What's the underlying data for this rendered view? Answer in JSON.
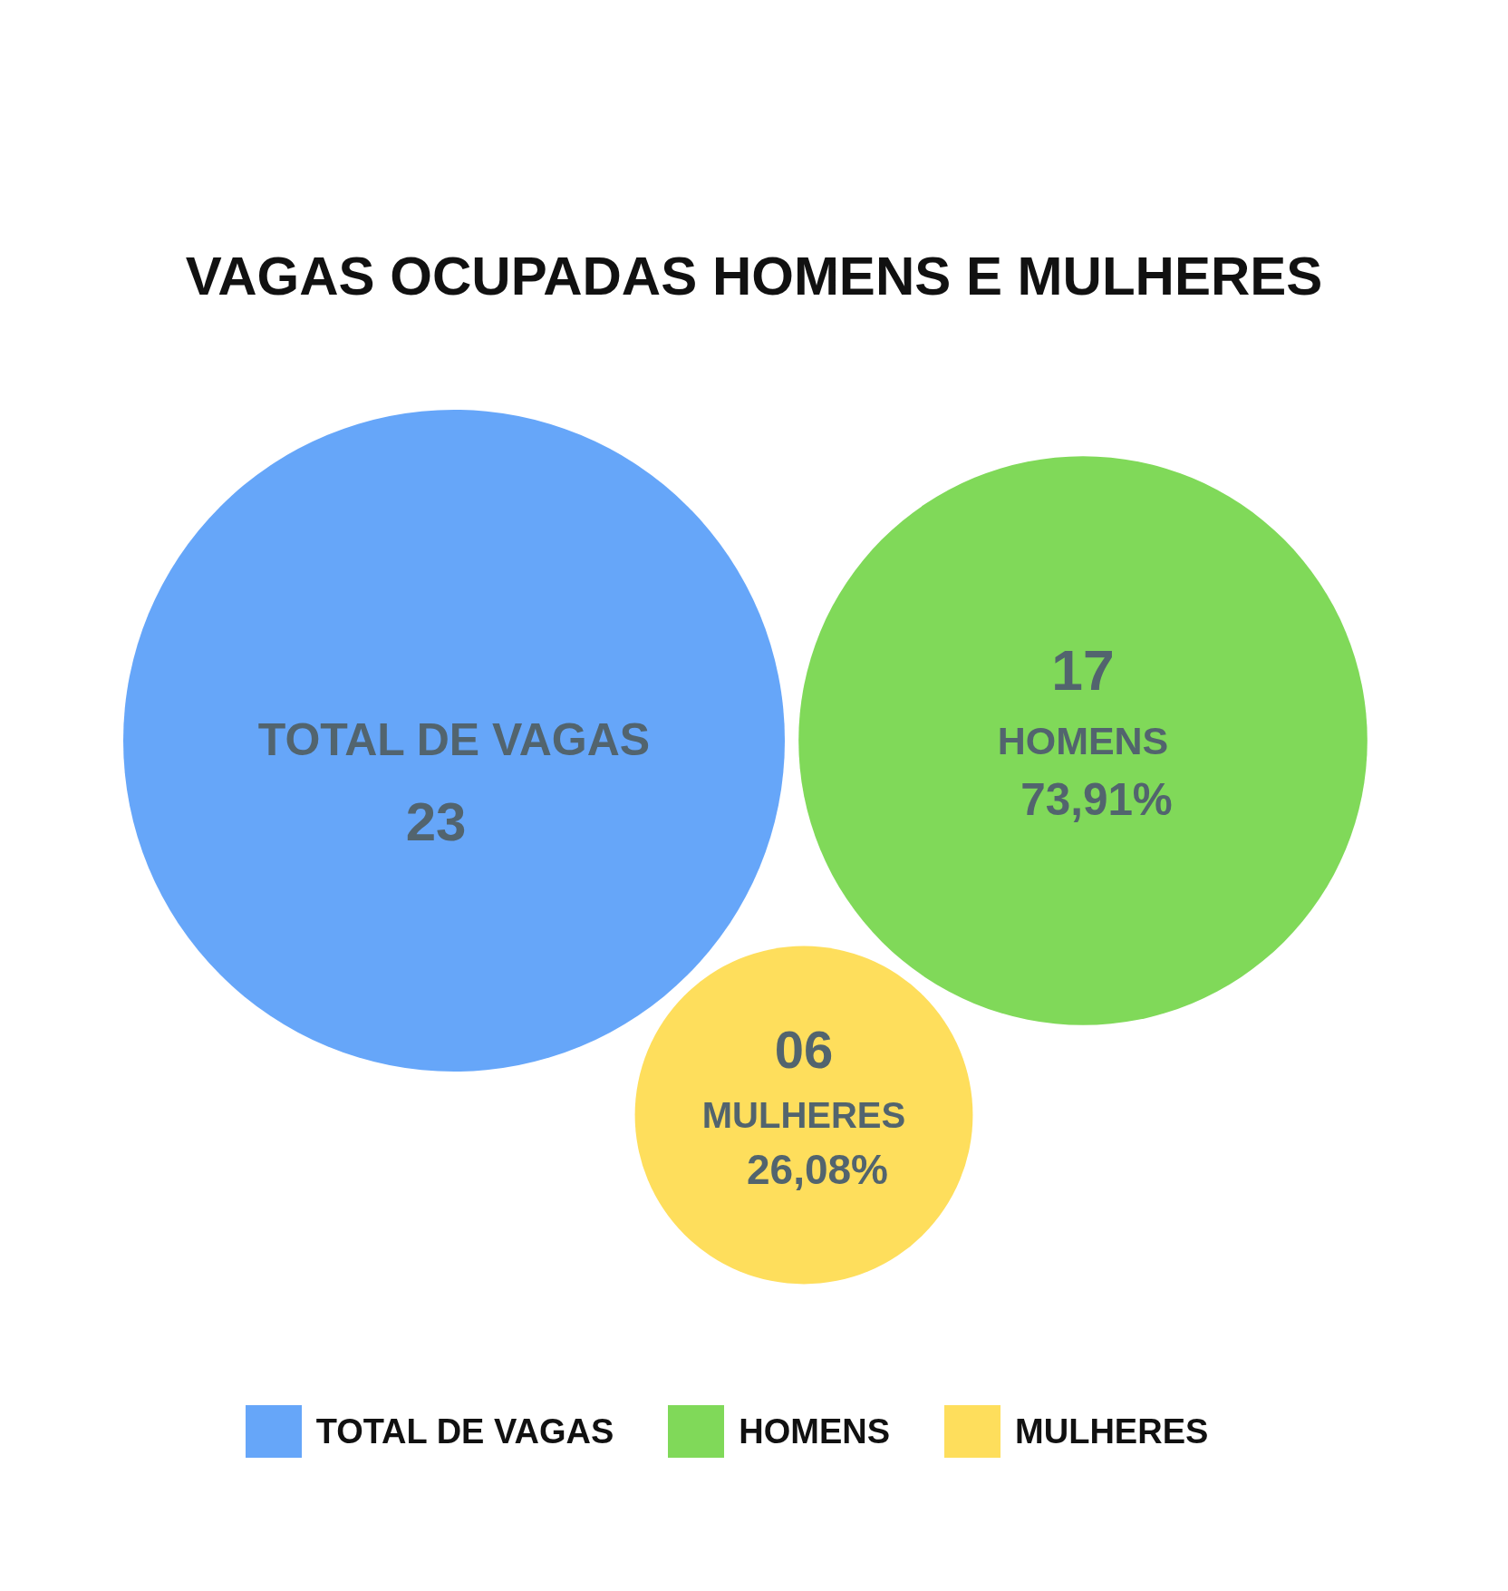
{
  "chart_data": {
    "type": "other",
    "title": "VAGAS OCUPADAS HOMENS E MULHERES",
    "series": [
      {
        "name": "TOTAL DE VAGAS",
        "color": "#66a6f9",
        "values": [
          23
        ],
        "value_labels": [
          "23"
        ]
      },
      {
        "name": "HOMENS",
        "color": "#80d959",
        "values": [
          17
        ],
        "value_labels": [
          "17"
        ]
      },
      {
        "name": "MULHERES",
        "color": "#fede5c",
        "values": [
          6
        ],
        "value_labels": [
          "06"
        ]
      }
    ],
    "annotations": [
      {
        "text": "73,91%",
        "x": "HOMENS"
      },
      {
        "text": "26,08%",
        "x": "MULHERES"
      }
    ],
    "legend": "bottom"
  }
}
